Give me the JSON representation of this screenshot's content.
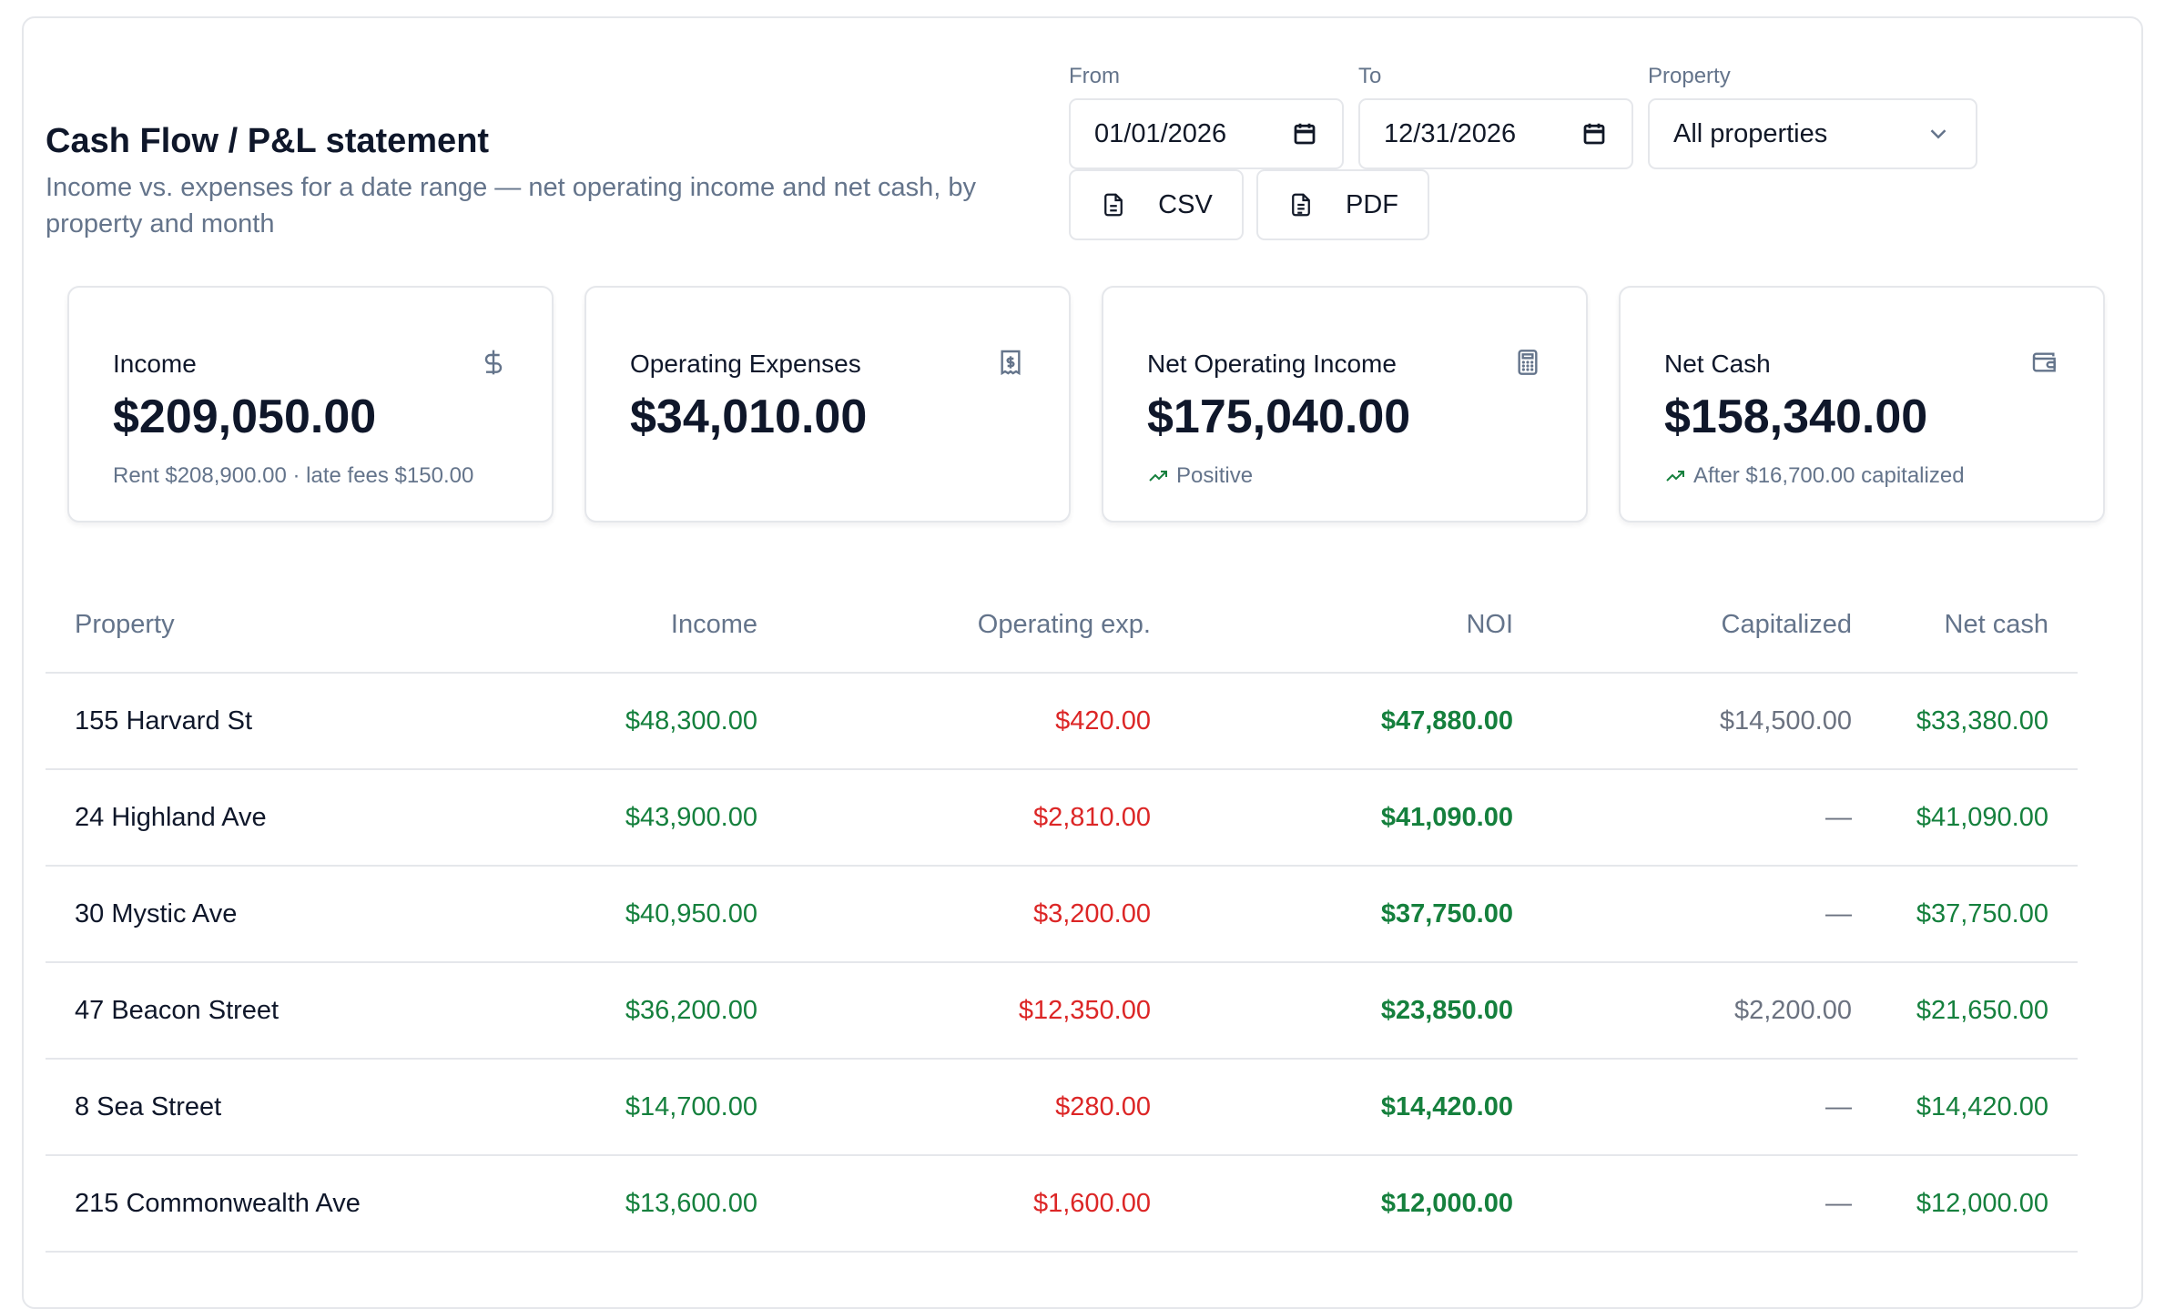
{
  "header": {
    "title": "Cash Flow / P&L statement",
    "subtitle": "Income vs. expenses for a date range — net operating income and net cash, by property and month"
  },
  "filters": {
    "from_label": "From",
    "from_value": "01/01/2026",
    "to_label": "To",
    "to_value": "12/31/2026",
    "property_label": "Property",
    "property_value": "All properties"
  },
  "export": {
    "csv_label": "CSV",
    "pdf_label": "PDF"
  },
  "cards": [
    {
      "label": "Income",
      "value": "$209,050.00",
      "sub": "Rent $208,900.00 · late fees $150.00",
      "icon": "dollar-icon"
    },
    {
      "label": "Operating Expenses",
      "value": "$34,010.00",
      "sub": "",
      "icon": "receipt-icon"
    },
    {
      "label": "Net Operating Income",
      "value": "$175,040.00",
      "sub": "Positive",
      "icon": "calculator-icon"
    },
    {
      "label": "Net Cash",
      "value": "$158,340.00",
      "sub": "After $16,700.00 capitalized",
      "icon": "wallet-icon"
    }
  ],
  "colors": {
    "positive": "#15803d",
    "negative": "#dc2626",
    "muted": "#64748b"
  },
  "table": {
    "headers": [
      "Property",
      "Income",
      "Operating exp.",
      "NOI",
      "Capitalized",
      "Net cash"
    ],
    "rows": [
      [
        "155 Harvard St",
        "$48,300.00",
        "$420.00",
        "$47,880.00",
        "$14,500.00",
        "$33,380.00"
      ],
      [
        "24 Highland Ave",
        "$43,900.00",
        "$2,810.00",
        "$41,090.00",
        "—",
        "$41,090.00"
      ],
      [
        "30 Mystic Ave",
        "$40,950.00",
        "$3,200.00",
        "$37,750.00",
        "—",
        "$37,750.00"
      ],
      [
        "47 Beacon Street",
        "$36,200.00",
        "$12,350.00",
        "$23,850.00",
        "$2,200.00",
        "$21,650.00"
      ],
      [
        "8 Sea Street",
        "$14,700.00",
        "$280.00",
        "$14,420.00",
        "—",
        "$14,420.00"
      ],
      [
        "215 Commonwealth Ave",
        "$13,600.00",
        "$1,600.00",
        "$12,000.00",
        "—",
        "$12,000.00"
      ]
    ]
  }
}
